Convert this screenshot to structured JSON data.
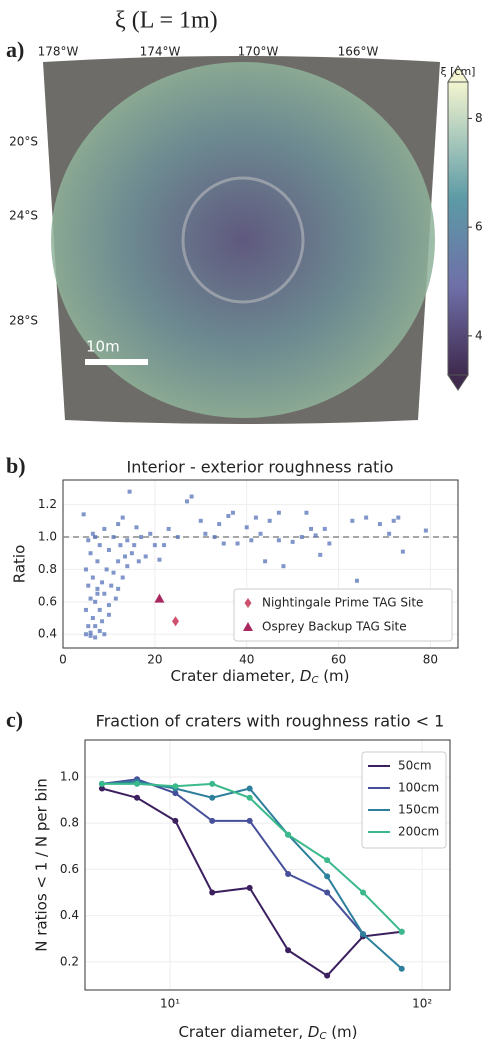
{
  "chart_data": [
    {
      "type": "map",
      "panel_label": "a)",
      "title": "ξ (L = 1m)",
      "lon_labels": [
        "178°W",
        "174°W",
        "170°W",
        "166°W"
      ],
      "lat_labels": [
        "20°S",
        "24°S",
        "28°S"
      ],
      "scale_bar_label": "10m",
      "colorbar": {
        "label": "ξ [cm]",
        "lim": [
          3.28,
          8.67
        ],
        "ticks": [
          4,
          6,
          8
        ]
      }
    },
    {
      "type": "scatter",
      "panel_label": "b)",
      "title": "Interior - exterior roughness ratio",
      "xlabel": {
        "text": "Crater diameter, ",
        "symbol": "D",
        "subscript": "C",
        "unit": "(m)"
      },
      "ylabel": "Ratio",
      "xlim": [
        0,
        86
      ],
      "xticks": [
        0,
        20,
        40,
        60,
        80
      ],
      "ylim": [
        0.315,
        1.352
      ],
      "yticks": [
        0.4,
        0.6,
        0.8,
        {
          "value": 1,
          "label": "1.0"
        },
        1.2
      ],
      "grid": true,
      "reference_line": 1,
      "color": "#5571b8",
      "x": [
        4.5,
        5,
        5,
        5.5,
        5.5,
        6,
        6,
        6,
        6.5,
        6.5,
        7,
        7,
        7,
        7.5,
        7.5,
        8,
        8,
        8.5,
        8.5,
        9,
        9,
        9.5,
        10,
        10,
        10.5,
        11,
        11,
        11.5,
        12,
        12,
        12.5,
        13,
        13,
        13.5,
        14,
        14,
        14.5,
        15,
        15.5,
        16,
        16.5,
        17,
        18,
        19,
        20,
        5,
        6,
        7,
        8,
        9,
        10,
        12,
        5.5,
        6.5,
        7.5,
        22,
        25,
        21,
        23,
        27,
        28,
        30,
        31,
        33,
        34,
        35,
        36,
        37,
        38,
        40,
        41,
        42,
        43,
        44,
        45,
        47,
        47,
        48,
        50,
        52,
        53,
        54,
        55,
        56,
        57,
        58,
        63,
        64,
        66,
        69,
        71,
        72,
        73,
        74,
        79
      ],
      "values": [
        1.14,
        0.55,
        0.8,
        0.45,
        0.7,
        0.9,
        0.62,
        0.41,
        0.75,
        0.5,
        1.0,
        0.6,
        0.45,
        0.85,
        0.68,
        0.95,
        0.55,
        0.72,
        0.48,
        1.05,
        0.65,
        0.8,
        0.92,
        0.58,
        0.7,
        1.0,
        0.78,
        0.62,
        1.08,
        0.85,
        0.95,
        0.75,
        1.12,
        0.88,
        0.98,
        0.82,
        1.28,
        0.9,
        0.95,
        1.06,
        0.85,
        1.0,
        0.88,
        1.02,
        0.95,
        0.4,
        0.39,
        0.38,
        0.42,
        0.4,
        0.52,
        0.68,
        0.98,
        1.02,
        0.65,
        0.95,
        1.0,
        0.86,
        1.05,
        1.22,
        1.25,
        1.1,
        1.02,
        1.0,
        1.08,
        0.96,
        1.13,
        1.15,
        0.96,
        1.06,
        0.98,
        1.12,
        1.02,
        0.85,
        1.1,
        1.15,
        0.98,
        0.82,
        0.97,
        1.0,
        1.15,
        1.05,
        1.01,
        0.89,
        1.05,
        0.96,
        1.1,
        0.73,
        1.12,
        1.08,
        1.02,
        1.1,
        1.12,
        0.91,
        1.04
      ],
      "markers": [
        {
          "name": "Nightingale Prime TAG Site",
          "x": 24.5,
          "value": 0.48,
          "color": "#d0506f",
          "shape": "diamond"
        },
        {
          "name": "Osprey Backup TAG Site",
          "x": 21,
          "value": 0.62,
          "color": "#a8275f",
          "shape": "triangle"
        }
      ],
      "legend": "lower right"
    },
    {
      "type": "line",
      "panel_label": "c)",
      "title": "Fraction of craters with roughness ratio < 1",
      "xlabel": {
        "text": "Crater diameter, ",
        "symbol": "D",
        "subscript": "C",
        "unit": "(m)"
      },
      "ylabel": "N ratios < 1 / N per bin",
      "log_x": true,
      "xlim": [
        4.6,
        129
      ],
      "xticks": [
        {
          "value": 10,
          "label": "10¹"
        },
        {
          "value": 100,
          "label": "10²"
        }
      ],
      "ylim": [
        0.078,
        1.16
      ],
      "yticks": [
        0.2,
        0.4,
        0.6,
        0.8,
        {
          "value": 1,
          "label": "1.0"
        }
      ],
      "grid": true,
      "legend": "upper right",
      "x": [
        5.37,
        7.4,
        10.5,
        14.7,
        20.7,
        29.4,
        42,
        58.3,
        83
      ],
      "series": [
        {
          "name": "50cm",
          "color": "#3b1f5e",
          "values": [
            0.95,
            0.91,
            0.81,
            0.5,
            0.52,
            0.25,
            0.14,
            0.31,
            0.33
          ]
        },
        {
          "name": "100cm",
          "color": "#46509a",
          "values": [
            0.97,
            0.99,
            0.93,
            0.81,
            0.81,
            0.58,
            0.5,
            0.32,
            null
          ]
        },
        {
          "name": "150cm",
          "color": "#2d7f9b",
          "values": [
            0.97,
            0.98,
            0.95,
            0.91,
            0.95,
            0.75,
            0.57,
            0.32,
            0.17
          ]
        },
        {
          "name": "200cm",
          "color": "#3bb98b",
          "values": [
            0.97,
            0.97,
            0.96,
            0.97,
            0.91,
            0.75,
            0.64,
            0.5,
            0.33
          ]
        }
      ]
    }
  ]
}
